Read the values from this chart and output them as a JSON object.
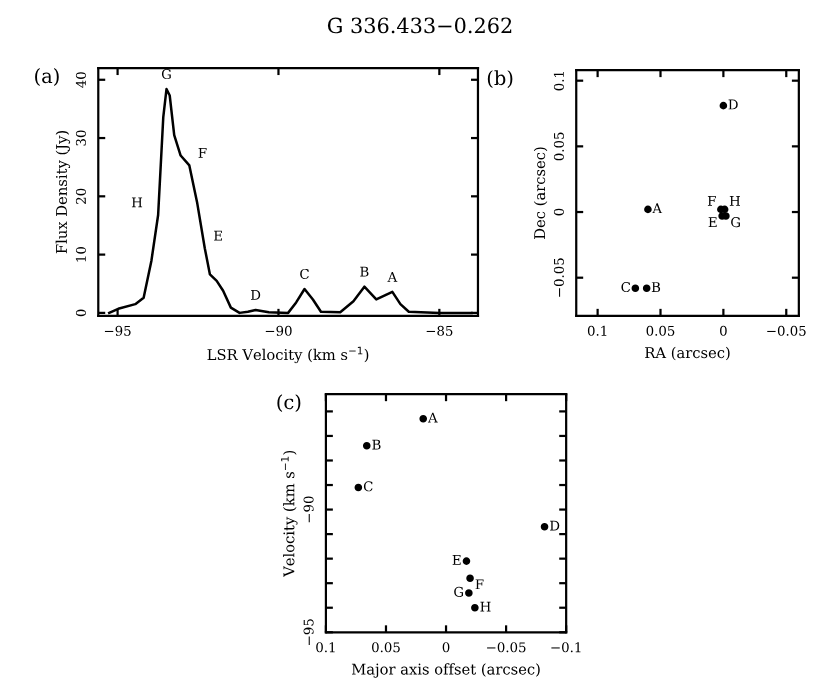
{
  "chart_data": [
    {
      "type": "line",
      "title": "G 336.433−0.262",
      "xlabel": "LSR Velocity (km s$^{−1}$)",
      "ylabel": "Flux Density (Jy)",
      "x": [
        -95.26,
        -94.98,
        -94.45,
        -94.19,
        -93.95,
        -93.74,
        -93.58,
        -93.48,
        -93.38,
        -93.24,
        -93.04,
        -92.77,
        -92.53,
        -92.29,
        -92.13,
        -91.92,
        -91.72,
        -91.48,
        -91.21,
        -90.95,
        -90.71,
        -90.3,
        -89.7,
        -89.45,
        -89.19,
        -88.93,
        -88.68,
        -88.08,
        -87.67,
        -87.33,
        -86.96,
        -86.46,
        -86.21,
        -85.95,
        -85.0,
        -84.0
      ],
      "series": [
        {
          "color": "#000000",
          "values": [
            0,
            0.7,
            1.5,
            2.6,
            8.9,
            16.8,
            33.6,
            38.4,
            37.3,
            30.5,
            27,
            25.3,
            19,
            11.1,
            6.6,
            5.5,
            3.8,
            0.9,
            0,
            0.2,
            0.5,
            0.1,
            0,
            1.8,
            4.1,
            2.3,
            0.2,
            0.1,
            2,
            4.5,
            2.3,
            3.6,
            1.5,
            0.2,
            0,
            0
          ]
        }
      ],
      "xlim": [
        -95.6,
        -83.8
      ],
      "ylim": [
        -0.5,
        42
      ],
      "xticks": [
        -95,
        -90,
        -85
      ],
      "yticks": [
        0,
        10,
        20,
        30,
        40
      ],
      "marker": "none",
      "line_style": "solid",
      "annotations": [
        "(a)",
        {
          "text": "G",
          "x": -93.48,
          "y": 38.4
        },
        {
          "text": "F",
          "x": -92.77,
          "y": 25.3
        },
        {
          "text": "E",
          "x": -92.29,
          "y": 11.1
        },
        {
          "text": "H",
          "x": -93.95,
          "y": 16.8
        },
        {
          "text": "D",
          "x": -90.71,
          "y": 0.5
        },
        {
          "text": "C",
          "x": -89.19,
          "y": 4.1
        },
        {
          "text": "B",
          "x": -87.33,
          "y": 4.5
        },
        {
          "text": "A",
          "x": -86.46,
          "y": 3.6
        }
      ]
    },
    {
      "type": "scatter",
      "xlabel": "RA (arcsec)",
      "ylabel": "Dec (arcsec)",
      "x": [
        0.06,
        0.061,
        0.07,
        0,
        0.001,
        0.002,
        -0.002,
        -0.001
      ],
      "series": [
        {
          "color": "#000000",
          "values": [
            0.002,
            -0.058,
            -0.058,
            0.081,
            -0.003,
            0.002,
            -0.003,
            0.002
          ]
        }
      ],
      "xlim": [
        0.117,
        -0.06
      ],
      "ylim": [
        -0.079,
        0.108
      ],
      "xticks": [
        0.1,
        0.05,
        0,
        -0.05
      ],
      "yticks": [
        -0.05,
        0,
        0.05,
        0.1
      ],
      "marker": "circle",
      "annotations": [
        "(b)",
        {
          "text": "A",
          "x": 0.06,
          "y": 0.002
        },
        {
          "text": "B",
          "x": 0.061,
          "y": -0.058
        },
        {
          "text": "C",
          "x": 0.07,
          "y": -0.058
        },
        {
          "text": "D",
          "x": 0,
          "y": 0.081
        },
        {
          "text": "E",
          "x": 0.001,
          "y": -0.003
        },
        {
          "text": "F",
          "x": 0.002,
          "y": 0.002
        },
        {
          "text": "G",
          "x": -0.002,
          "y": -0.003
        },
        {
          "text": "H",
          "x": -0.001,
          "y": 0.002
        }
      ]
    },
    {
      "type": "scatter",
      "xlabel": "Major axis offset (arcsec)",
      "ylabel": "Velocity (km s$^{−1}$)",
      "x": [
        0.019,
        0.066,
        0.073,
        -0.082,
        -0.017,
        -0.02,
        -0.019,
        -0.024
      ],
      "series": [
        {
          "color": "#000000",
          "values": [
            -86.3,
            -87.4,
            -89.1,
            -90.7,
            -92.1,
            -92.8,
            -93.4,
            -94.0
          ]
        }
      ],
      "xlim": [
        0.1,
        -0.1
      ],
      "ylim": [
        -95,
        -85.3
      ],
      "xticks": [
        0.1,
        0.05,
        0,
        -0.05,
        -0.1
      ],
      "yticks": [
        -95,
        {
          "value": -94,
          "label": null
        },
        {
          "value": -93,
          "label": null
        },
        {
          "value": -92,
          "label": null
        },
        {
          "value": -91,
          "label": null
        },
        -90,
        {
          "value": -89,
          "label": null
        },
        {
          "value": -88,
          "label": null
        },
        {
          "value": -87,
          "label": null
        },
        {
          "value": -86,
          "label": null
        }
      ],
      "marker": "circle",
      "annotations": [
        "(c)",
        {
          "text": "A",
          "x": 0.019,
          "y": -86.3
        },
        {
          "text": "B",
          "x": 0.066,
          "y": -87.4
        },
        {
          "text": "C",
          "x": 0.073,
          "y": -89.1
        },
        {
          "text": "D",
          "x": -0.082,
          "y": -90.7
        },
        {
          "text": "E",
          "x": -0.017,
          "y": -92.1
        },
        {
          "text": "F",
          "x": -0.02,
          "y": -92.8
        },
        {
          "text": "G",
          "x": -0.019,
          "y": -93.4
        },
        {
          "text": "H",
          "x": -0.024,
          "y": -94.0
        }
      ]
    }
  ]
}
